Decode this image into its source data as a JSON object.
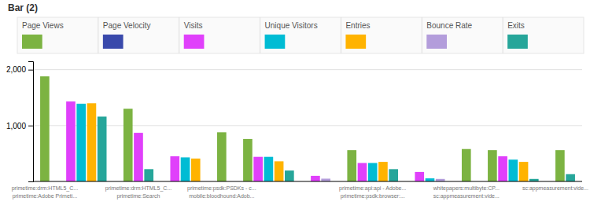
{
  "chart_data": {
    "type": "bar",
    "title": "Bar (2)",
    "categories": [
      [
        "primetime:drm:HTML5_C...",
        "primetime:Adobe Primeti..."
      ],
      null,
      [
        "primetime:drm:HTML5_C...",
        "primetime:Search"
      ],
      null,
      [
        "primetime:psdk:PSDKs - c...",
        "mobile:bloodhound:Adob..."
      ],
      null,
      null,
      [
        "primetime:api:api - Adobe...",
        "primetime:psdk:browser:..."
      ],
      null,
      [
        "whitepapers:multibyte:CP...",
        "sc:appmeasurement:vide..."
      ],
      null,
      [
        "sc:appmeasurement:vide..."
      ]
    ],
    "series": [
      {
        "name": "Page Views",
        "color": "#7cb342",
        "values": [
          1880,
          0,
          1300,
          0,
          880,
          760,
          0,
          560,
          0,
          580,
          560,
          560
        ]
      },
      {
        "name": "Page Velocity",
        "color": "#3949ab",
        "values": [
          0,
          0,
          0,
          0,
          0,
          0,
          0,
          0,
          0,
          0,
          0,
          0
        ]
      },
      {
        "name": "Visits",
        "color": "#e040fb",
        "values": [
          0,
          1430,
          870,
          450,
          0,
          440,
          100,
          330,
          170,
          0,
          450,
          0
        ]
      },
      {
        "name": "Unique Visitors",
        "color": "#00bcd4",
        "values": [
          0,
          1390,
          0,
          430,
          0,
          440,
          0,
          330,
          55,
          0,
          390,
          0
        ]
      },
      {
        "name": "Entries",
        "color": "#ffb300",
        "values": [
          0,
          1400,
          0,
          410,
          0,
          360,
          0,
          350,
          0,
          0,
          350,
          0
        ]
      },
      {
        "name": "Bounce Rate",
        "color": "#b39ddb",
        "values": [
          0,
          0,
          0,
          0,
          0,
          0,
          50,
          0,
          45,
          0,
          0,
          0
        ]
      },
      {
        "name": "Exits",
        "color": "#26a69a",
        "values": [
          0,
          1160,
          220,
          0,
          0,
          195,
          0,
          220,
          0,
          0,
          45,
          130
        ]
      }
    ],
    "ylim": [
      0,
      2150
    ],
    "yticks": [
      {
        "value": 1000,
        "label": "1,000"
      },
      {
        "value": 2000,
        "label": "2,000"
      }
    ],
    "grid": true,
    "legend": "top"
  }
}
